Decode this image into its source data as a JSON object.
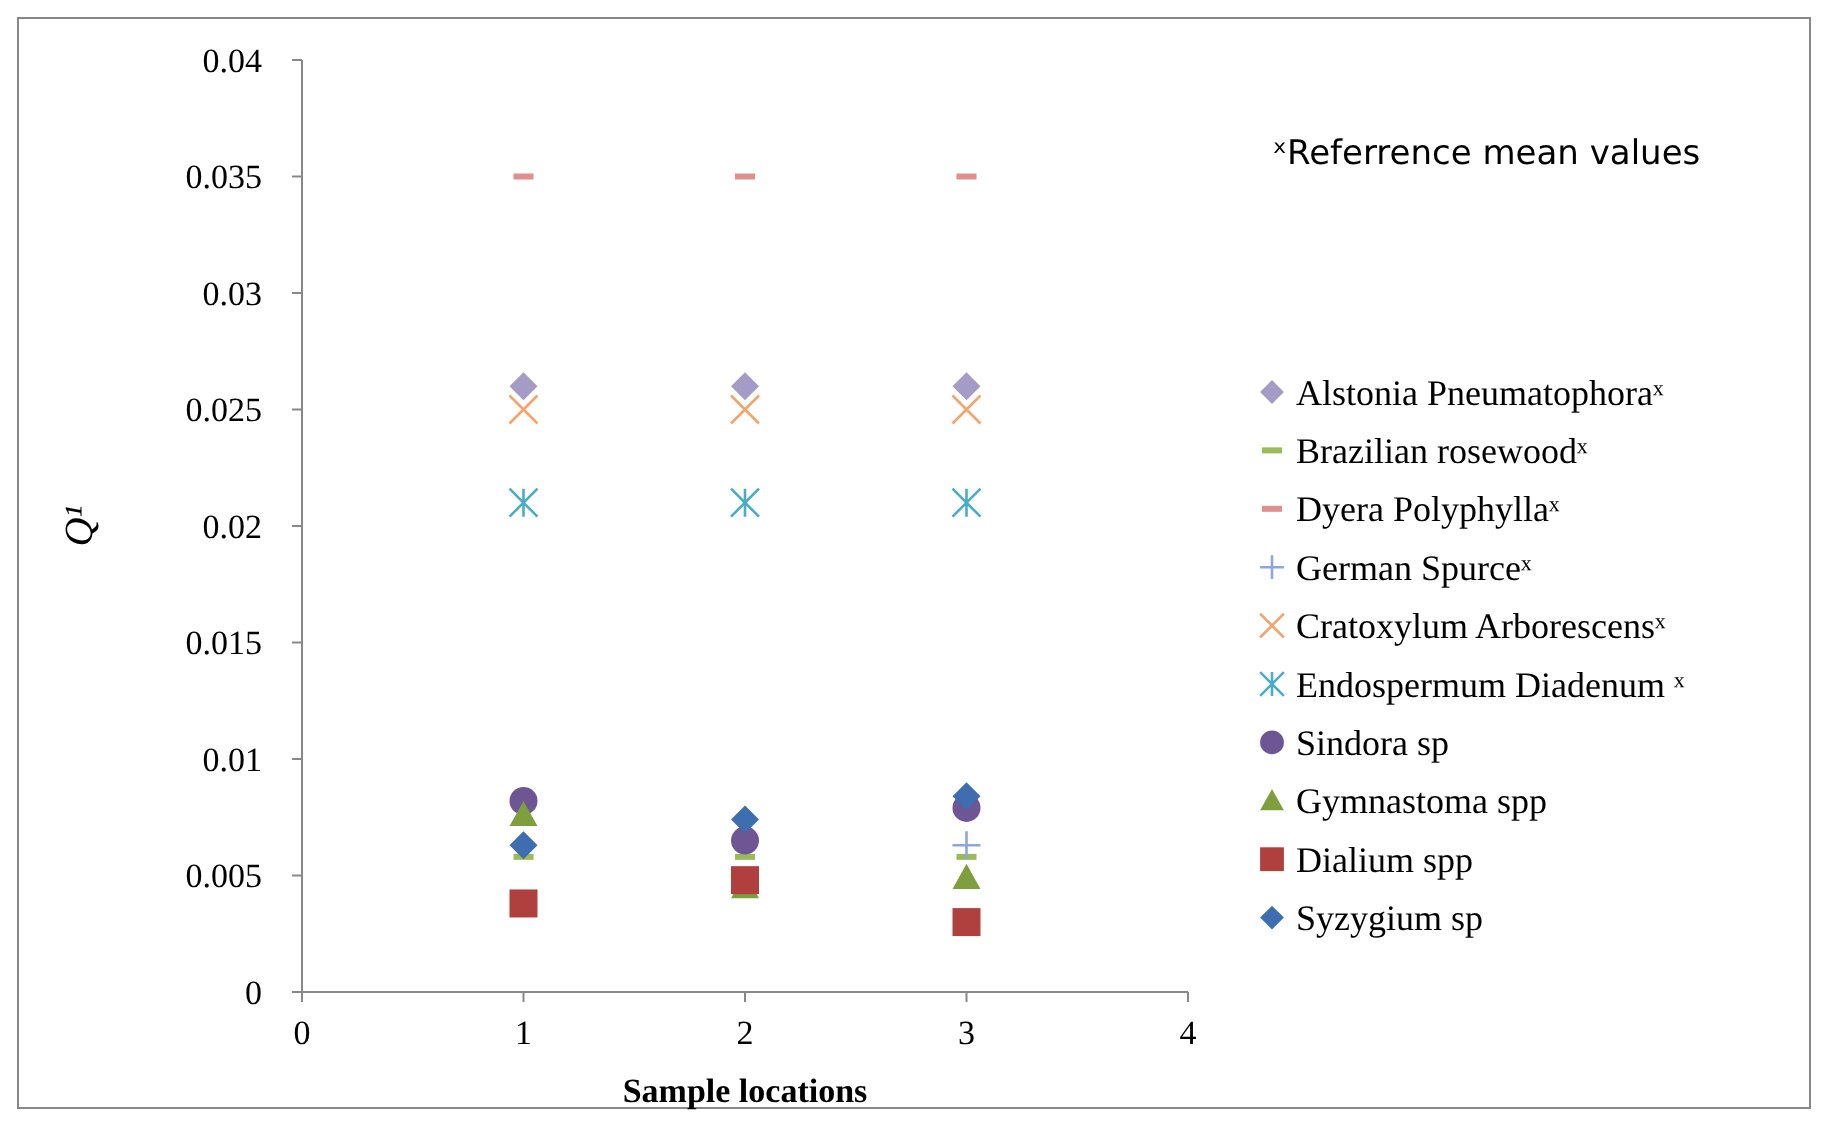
{
  "chart_data": {
    "type": "scatter",
    "xlabel": "Sample locations",
    "ylabel": "Q¹",
    "x": [
      1,
      2,
      3
    ],
    "xlim": [
      0,
      4
    ],
    "xticks": [
      0,
      1,
      2,
      3,
      4
    ],
    "ylim": [
      0,
      0.04
    ],
    "yticks": [
      0,
      0.005,
      0.01,
      0.015,
      0.02,
      0.025,
      0.03,
      0.035,
      0.04
    ],
    "grid": false,
    "legend": "right",
    "annotations": [
      "ˣReferrence mean values"
    ],
    "series": [
      {
        "name": "Alstonia Pneumatophoraˣ",
        "color": "#a59bc7",
        "marker": "diamond",
        "values": [
          0.026,
          0.026,
          0.026
        ]
      },
      {
        "name": "Brazilian rosewoodˣ",
        "color": "#9bbb59",
        "values": [
          0.0058,
          0.0058,
          0.0058
        ]
      },
      {
        "name": "Dyera Polyphyllaˣ",
        "color": "#e0908c",
        "values": [
          0.035,
          0.035,
          0.035
        ]
      },
      {
        "name": "German Spurceˣ",
        "color": "#8ea6da",
        "marker": "plus",
        "values": [
          null,
          null,
          0.0063
        ]
      },
      {
        "name": "Cratoxylum Arborescensˣ",
        "color": "#f4a46c",
        "marker": "x",
        "values": [
          0.025,
          0.025,
          0.025
        ]
      },
      {
        "name": "Endospermum Diadenum ˣ",
        "color": "#4bacc6",
        "marker": "cross",
        "values": [
          0.021,
          0.021,
          0.021
        ]
      },
      {
        "name": "Sindora sp",
        "color": "#6e5594",
        "marker": "circle",
        "values": [
          0.0082,
          0.0065,
          0.0079
        ]
      },
      {
        "name": "Gymnastoma spp",
        "color": "#7f9f3f",
        "marker": "triangle",
        "values": [
          0.0076,
          0.0045,
          0.0049
        ]
      },
      {
        "name": "Dialium spp",
        "color": "#b0403d",
        "marker": "square",
        "values": [
          0.0038,
          0.0048,
          0.003
        ]
      },
      {
        "name": "Syzygium sp",
        "color": "#3e6eb0",
        "marker": "diamond",
        "values": [
          0.0063,
          0.0074,
          0.0084
        ]
      }
    ]
  }
}
